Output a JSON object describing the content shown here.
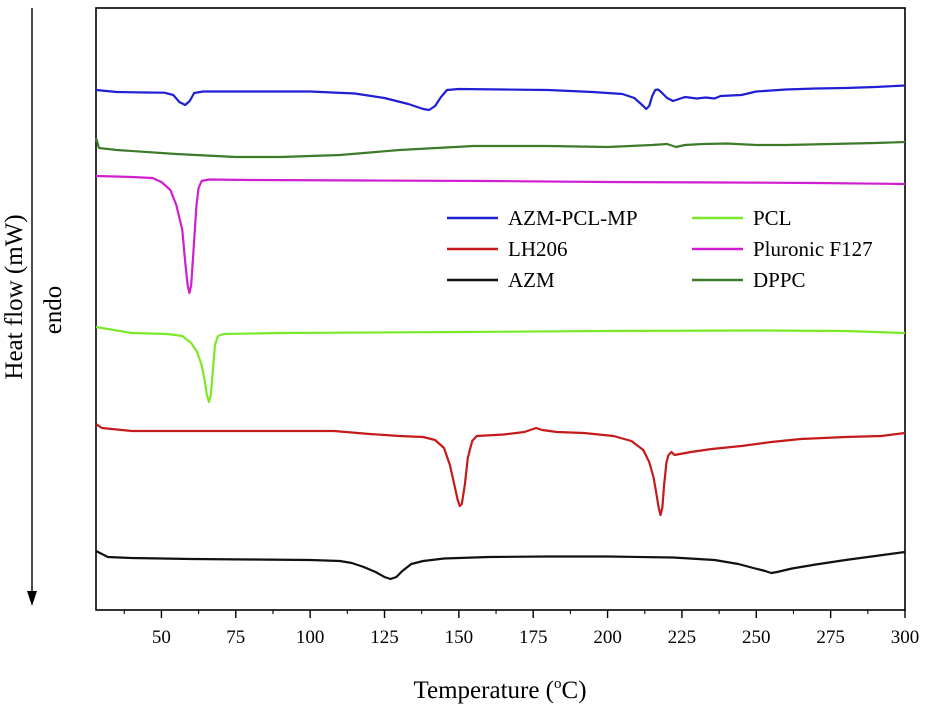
{
  "chart_data": {
    "type": "line",
    "xlabel": "Temperature (",
    "xlabel_super": "o",
    "xlabel_unit": "C)",
    "ylabel": "Heat flow (mW)",
    "y_annotation": "endo",
    "xlim": [
      28,
      300
    ],
    "xticks": [
      "50",
      "75",
      "100",
      "125",
      "150",
      "175",
      "200",
      "225",
      "250",
      "275",
      "300"
    ],
    "y_tick_labels": false,
    "grid": false,
    "legend_position": "center-right",
    "legend": [
      "AZM-PCL-MP",
      "PCL",
      "LH206",
      "Pluronic F127",
      "AZM",
      "DPPC"
    ],
    "series": [
      {
        "name": "AZM-PCL-MP",
        "color": "#1f1fd4",
        "baseline": 94,
        "points": [
          [
            28,
            90
          ],
          [
            35,
            92
          ],
          [
            45,
            92.5
          ],
          [
            51,
            92.7
          ],
          [
            54,
            95
          ],
          [
            56,
            102
          ],
          [
            58,
            105
          ],
          [
            59.5,
            101
          ],
          [
            61,
            93
          ],
          [
            64,
            91.5
          ],
          [
            80,
            91.5
          ],
          [
            100,
            91.5
          ],
          [
            115,
            93.5
          ],
          [
            125,
            98
          ],
          [
            133,
            104
          ],
          [
            138,
            109
          ],
          [
            140,
            110
          ],
          [
            142,
            106
          ],
          [
            144,
            97
          ],
          [
            146,
            90
          ],
          [
            150,
            89
          ],
          [
            165,
            89.5
          ],
          [
            180,
            90
          ],
          [
            195,
            92
          ],
          [
            205,
            94
          ],
          [
            209,
            98
          ],
          [
            212,
            106
          ],
          [
            213,
            109
          ],
          [
            214,
            106
          ],
          [
            215,
            96
          ],
          [
            216,
            90
          ],
          [
            217,
            89.5
          ],
          [
            218,
            92
          ],
          [
            220,
            98
          ],
          [
            222,
            101
          ],
          [
            224,
            99
          ],
          [
            226,
            97
          ],
          [
            230,
            98.5
          ],
          [
            233,
            97.5
          ],
          [
            236,
            98.5
          ],
          [
            238,
            96
          ],
          [
            245,
            95
          ],
          [
            250,
            91.5
          ],
          [
            260,
            89.5
          ],
          [
            270,
            88.5
          ],
          [
            280,
            88
          ],
          [
            290,
            87
          ],
          [
            300,
            85.5
          ]
        ]
      },
      {
        "name": "DPPC",
        "color": "#3d7a2a",
        "points": [
          [
            28,
            138
          ],
          [
            29,
            148
          ],
          [
            35,
            150
          ],
          [
            55,
            154
          ],
          [
            75,
            157
          ],
          [
            90,
            157
          ],
          [
            110,
            155
          ],
          [
            130,
            150
          ],
          [
            155,
            146
          ],
          [
            180,
            146
          ],
          [
            200,
            147
          ],
          [
            215,
            145
          ],
          [
            220,
            144
          ],
          [
            223,
            147
          ],
          [
            226,
            145
          ],
          [
            232,
            144
          ],
          [
            240,
            143.5
          ],
          [
            250,
            145
          ],
          [
            260,
            145
          ],
          [
            275,
            144
          ],
          [
            290,
            143
          ],
          [
            300,
            142
          ]
        ]
      },
      {
        "name": "Pluronic F127",
        "color": "#d01fd0",
        "points": [
          [
            28,
            176
          ],
          [
            40,
            177
          ],
          [
            47,
            178
          ],
          [
            50,
            182
          ],
          [
            53,
            190
          ],
          [
            55,
            205
          ],
          [
            57,
            230
          ],
          [
            58,
            262
          ],
          [
            58.8,
            285
          ],
          [
            59.4,
            293
          ],
          [
            60,
            285
          ],
          [
            61,
            240
          ],
          [
            61.8,
            205
          ],
          [
            62.5,
            188
          ],
          [
            63.5,
            181
          ],
          [
            66,
            179.5
          ],
          [
            80,
            180
          ],
          [
            120,
            180.5
          ],
          [
            160,
            181
          ],
          [
            200,
            182
          ],
          [
            240,
            182.5
          ],
          [
            270,
            183
          ],
          [
            300,
            184
          ]
        ]
      },
      {
        "name": "PCL",
        "color": "#7be82a",
        "points": [
          [
            28,
            327
          ],
          [
            40,
            333
          ],
          [
            52,
            334
          ],
          [
            57,
            336
          ],
          [
            60,
            343
          ],
          [
            62,
            352
          ],
          [
            63.5,
            365
          ],
          [
            64.5,
            380
          ],
          [
            65.3,
            395
          ],
          [
            66,
            402
          ],
          [
            66.6,
            395
          ],
          [
            67.3,
            370
          ],
          [
            68,
            345
          ],
          [
            69,
            336
          ],
          [
            71,
            334
          ],
          [
            90,
            333
          ],
          [
            150,
            332
          ],
          [
            200,
            331
          ],
          [
            250,
            330.5
          ],
          [
            280,
            331
          ],
          [
            300,
            333
          ]
        ]
      },
      {
        "name": "LH206",
        "color": "#c41a1a",
        "points": [
          [
            28,
            424
          ],
          [
            30,
            428
          ],
          [
            40,
            431
          ],
          [
            60,
            431
          ],
          [
            80,
            431
          ],
          [
            100,
            431
          ],
          [
            108,
            431
          ],
          [
            112,
            432
          ],
          [
            120,
            434
          ],
          [
            130,
            436
          ],
          [
            138,
            437
          ],
          [
            142,
            440
          ],
          [
            145,
            448
          ],
          [
            147,
            465
          ],
          [
            148.5,
            485
          ],
          [
            149.6,
            500
          ],
          [
            150.3,
            506
          ],
          [
            151,
            504
          ],
          [
            152,
            485
          ],
          [
            153,
            458
          ],
          [
            154.5,
            441
          ],
          [
            156,
            436
          ],
          [
            165,
            434.5
          ],
          [
            172,
            432
          ],
          [
            176,
            428
          ],
          [
            178,
            430
          ],
          [
            183,
            432
          ],
          [
            192,
            433
          ],
          [
            202,
            436
          ],
          [
            208,
            441
          ],
          [
            212,
            450
          ],
          [
            214,
            462
          ],
          [
            215.5,
            478
          ],
          [
            216.5,
            495
          ],
          [
            217.2,
            508
          ],
          [
            217.8,
            515
          ],
          [
            218.4,
            508
          ],
          [
            219,
            485
          ],
          [
            219.8,
            462
          ],
          [
            220.5,
            455
          ],
          [
            221.5,
            452
          ],
          [
            222.5,
            455
          ],
          [
            228,
            452
          ],
          [
            235,
            449
          ],
          [
            245,
            446
          ],
          [
            255,
            442
          ],
          [
            265,
            439
          ],
          [
            280,
            437
          ],
          [
            292,
            436
          ],
          [
            300,
            433
          ]
        ]
      },
      {
        "name": "AZM",
        "color": "#111111",
        "points": [
          [
            28,
            551
          ],
          [
            32,
            557
          ],
          [
            40,
            558
          ],
          [
            60,
            559
          ],
          [
            80,
            559.5
          ],
          [
            100,
            560
          ],
          [
            110,
            561
          ],
          [
            114,
            563
          ],
          [
            118,
            567
          ],
          [
            122,
            572
          ],
          [
            125,
            577
          ],
          [
            127,
            579
          ],
          [
            129,
            577
          ],
          [
            131,
            571
          ],
          [
            134,
            564
          ],
          [
            138,
            561
          ],
          [
            145,
            558.5
          ],
          [
            160,
            557
          ],
          [
            180,
            556.5
          ],
          [
            200,
            556.5
          ],
          [
            222,
            557.5
          ],
          [
            236,
            560
          ],
          [
            244,
            564
          ],
          [
            249,
            568
          ],
          [
            253,
            571
          ],
          [
            255,
            573
          ],
          [
            257,
            572
          ],
          [
            262,
            568.5
          ],
          [
            270,
            564.5
          ],
          [
            280,
            560
          ],
          [
            290,
            556
          ],
          [
            300,
            552
          ]
        ]
      }
    ]
  }
}
